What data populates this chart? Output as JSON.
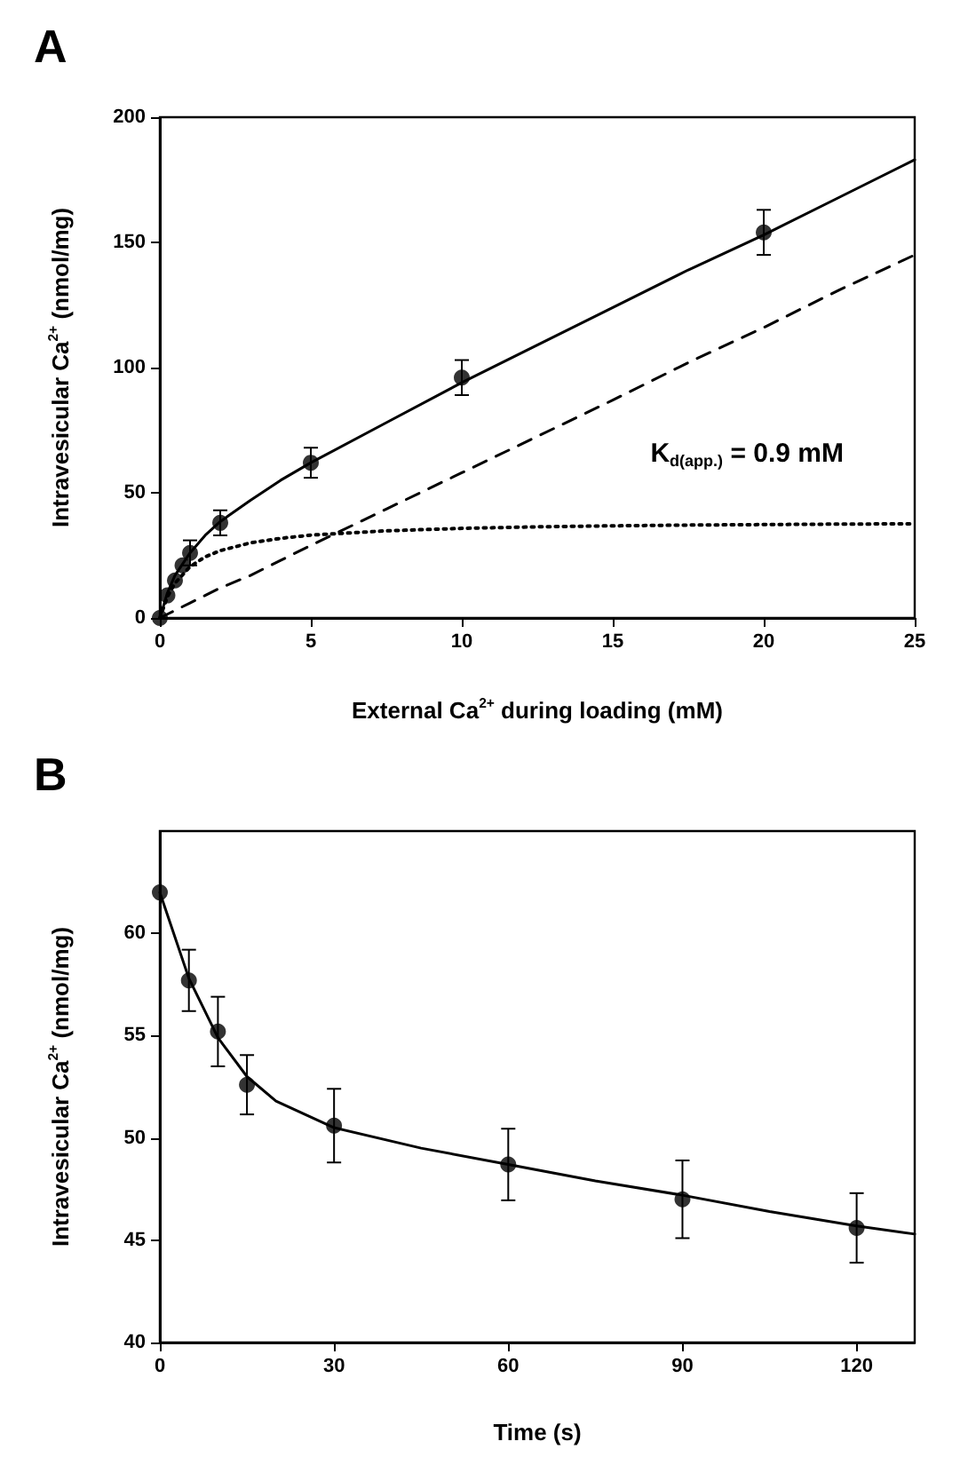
{
  "chart_data": [
    {
      "type": "scatter",
      "title": "A",
      "xlabel": "External Ca$^{2+}$ during loading (mM)",
      "ylabel": "Intravesicular Ca$^{2+}$ (nmol/mg)",
      "xlim": [
        0,
        25
      ],
      "xticks": [
        0,
        5,
        10,
        15,
        20,
        25
      ],
      "ylim": [
        0,
        200
      ],
      "yticks": [
        0,
        50,
        100,
        150,
        200
      ],
      "grid": false,
      "annotations": [
        "K$_{d(app.)}$ = 0.9 mM"
      ],
      "series": [
        {
          "color": "#000000",
          "marker": "circle",
          "x": [
            0,
            0.25,
            0.5,
            0.75,
            1,
            2,
            5,
            10,
            20
          ],
          "values": [
            0,
            9,
            15,
            21,
            26,
            38,
            62,
            96,
            154
          ],
          "errors": [
            null,
            null,
            null,
            null,
            5,
            5,
            6,
            7,
            9
          ]
        },
        {
          "type": "line",
          "color": "#000000",
          "marker": "none",
          "line_style": "solid",
          "x": [
            0,
            0.25,
            0.5,
            1,
            1.5,
            2,
            3,
            4,
            5,
            7.5,
            10,
            12.5,
            15,
            17.5,
            20,
            22.5,
            25
          ],
          "values": [
            0,
            10,
            17,
            26,
            33,
            38.5,
            47,
            55,
            62,
            78,
            94,
            109,
            124,
            139,
            153,
            168,
            183
          ]
        },
        {
          "type": "line",
          "color": "#000000",
          "marker": "none",
          "line_style": "dashed",
          "x": [
            0,
            0.25,
            0.5,
            1,
            1.5,
            2,
            3,
            4,
            5,
            7.5,
            10,
            12.5,
            15,
            17.5,
            20,
            22.5,
            25
          ],
          "values": [
            0,
            1.5,
            3,
            6,
            9,
            12,
            17,
            23,
            29,
            43.5,
            58,
            72.5,
            87,
            102,
            116,
            131,
            145
          ]
        },
        {
          "type": "line",
          "color": "#000000",
          "marker": "none",
          "line_style": "dotted",
          "x": [
            0,
            0.25,
            0.5,
            1,
            1.5,
            2,
            3,
            4,
            5,
            7.5,
            10,
            12.5,
            15,
            17.5,
            20,
            22.5,
            25
          ],
          "values": [
            0,
            8.5,
            13.9,
            20.5,
            24.4,
            26.9,
            30.0,
            31.8,
            33.1,
            34.8,
            35.8,
            36.4,
            36.8,
            37.1,
            37.3,
            37.5,
            37.6
          ]
        }
      ]
    },
    {
      "type": "scatter",
      "title": "B",
      "xlabel": "Time (s)",
      "ylabel": "Intravesicular Ca$^{2+}$ (nmol/mg)",
      "xlim": [
        0,
        130
      ],
      "xticks": [
        0,
        30,
        60,
        90,
        120
      ],
      "ylim": [
        40,
        65
      ],
      "yticks": [
        40,
        45,
        50,
        55,
        60
      ],
      "grid": false,
      "series": [
        {
          "color": "#000000",
          "marker": "circle",
          "x": [
            0,
            5,
            10,
            15,
            30,
            60,
            90,
            120
          ],
          "values": [
            62,
            57.7,
            55.2,
            52.6,
            50.6,
            48.7,
            47.0,
            45.6
          ],
          "errors": [
            null,
            1.5,
            1.7,
            1.45,
            1.8,
            1.75,
            1.9,
            1.7
          ]
        },
        {
          "type": "line",
          "color": "#000000",
          "marker": "none",
          "line_style": "solid",
          "x": [
            0,
            5,
            10,
            15,
            20,
            30,
            45,
            60,
            75,
            90,
            105,
            120,
            130
          ],
          "values": [
            62,
            57.8,
            54.9,
            53.0,
            51.8,
            50.5,
            49.5,
            48.7,
            47.9,
            47.2,
            46.4,
            45.7,
            45.3
          ]
        }
      ]
    }
  ]
}
